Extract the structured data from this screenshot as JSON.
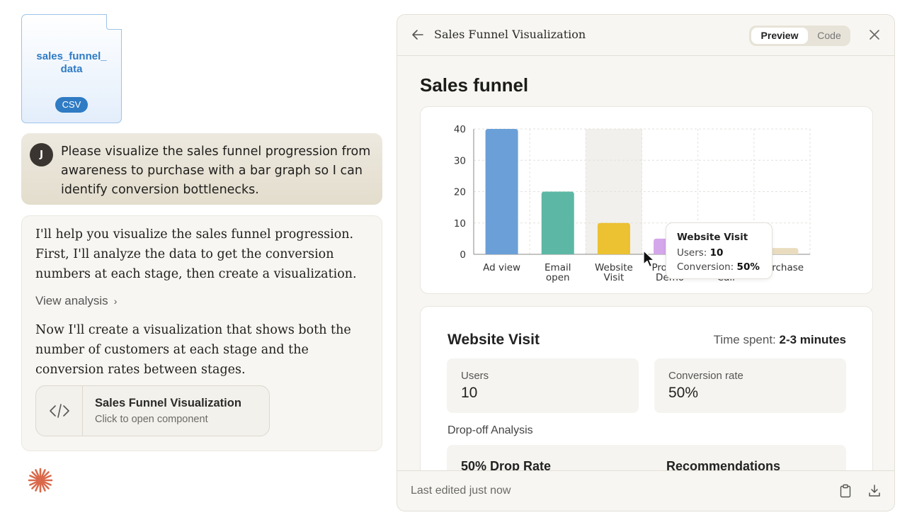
{
  "attachment": {
    "name_line1": "sales_funnel_",
    "name_line2": "data",
    "type_badge": "CSV"
  },
  "user_message": {
    "avatar_initial": "J",
    "text": "Please visualize the sales funnel progression from awareness to purchase with a bar graph so I can identify conversion bottlenecks."
  },
  "assistant_message": {
    "intro": "I'll help you visualize the sales funnel progression. First, I'll analyze the data to get the conversion numbers at each stage, then create a visualization.",
    "view_analysis": "View analysis",
    "followup": "Now I'll create a visualization that shows both the number of customers at each stage and the conversion rates between stages.",
    "component": {
      "title": "Sales Funnel Visualization",
      "subtitle": "Click to open component",
      "icon": "code-icon"
    }
  },
  "panel": {
    "title": "Sales Funnel Visualization",
    "tabs": {
      "preview": "Preview",
      "code": "Code",
      "active": "Preview"
    },
    "heading": "Sales funnel",
    "footer": "Last edited just now"
  },
  "chart_data": {
    "type": "bar",
    "categories": [
      [
        "Ad view"
      ],
      [
        "Email",
        "open"
      ],
      [
        "Website",
        "Visit"
      ],
      [
        "Product",
        "Demo"
      ],
      [
        "Sales",
        "Call"
      ],
      [
        "Purchase"
      ]
    ],
    "values": [
      40,
      20,
      10,
      5,
      2,
      2
    ],
    "colors": [
      "#6b9fd8",
      "#5cb8a4",
      "#ecc132",
      "#d4a6ea",
      "#cf7763",
      "#eadcbf"
    ],
    "ylim": [
      0,
      40
    ],
    "yticks": [
      0,
      10,
      20,
      30,
      40
    ],
    "grid": true,
    "highlighted_index": 2,
    "tooltip": {
      "title": "Website Visit",
      "users_label": "Users:",
      "users_value": "10",
      "conversion_label": "Conversion:",
      "conversion_value": "50%"
    }
  },
  "detail": {
    "stage": "Website Visit",
    "time_label": "Time spent:",
    "time_value": "2-3 minutes",
    "users_label": "Users",
    "users_value": "10",
    "conversion_label": "Conversion rate",
    "conversion_value": "50%",
    "dropoff_title": "Drop-off Analysis",
    "drop_rate": "50% Drop Rate",
    "recommendations": "Recommendations"
  }
}
